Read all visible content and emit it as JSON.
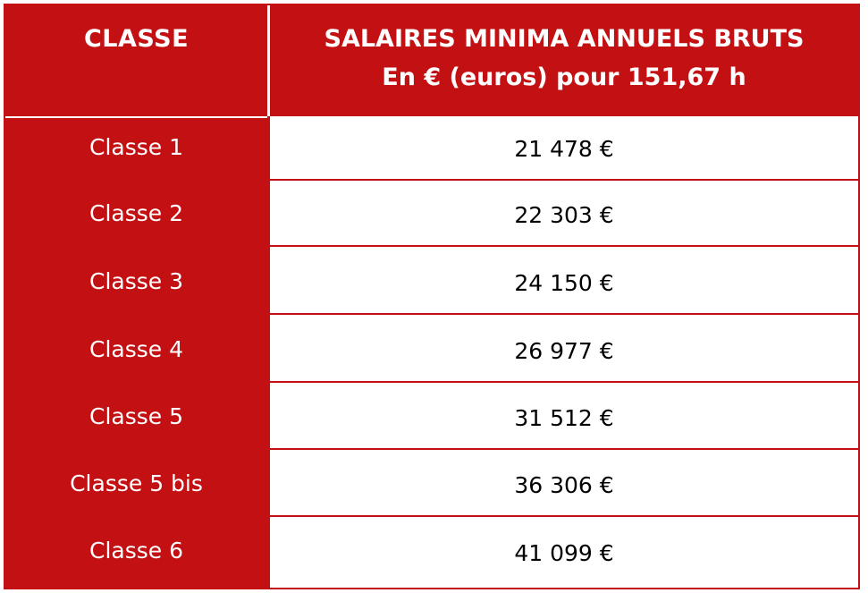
{
  "header": {
    "classe_label": "CLASSE",
    "salaire_line1": "SALAIRES MINIMA ANNUELS BRUTS",
    "salaire_line2": "En € (euros) pour 151,67 h"
  },
  "rows": [
    {
      "classe": "Classe 1",
      "salaire": "21 478 €"
    },
    {
      "classe": "Classe 2",
      "salaire": "22 303 €"
    },
    {
      "classe": "Classe 3",
      "salaire": "24 150 €"
    },
    {
      "classe": "Classe 4",
      "salaire": "26 977 €"
    },
    {
      "classe": "Classe 5",
      "salaire": "31 512 €"
    },
    {
      "classe": "Classe 5 bis",
      "salaire": "36 306 €"
    },
    {
      "classe": "Classe 6",
      "salaire": "41 099 €"
    }
  ],
  "colors": {
    "brand_red": "#c31013",
    "header_text": "#ffffff",
    "value_text": "#000000"
  }
}
